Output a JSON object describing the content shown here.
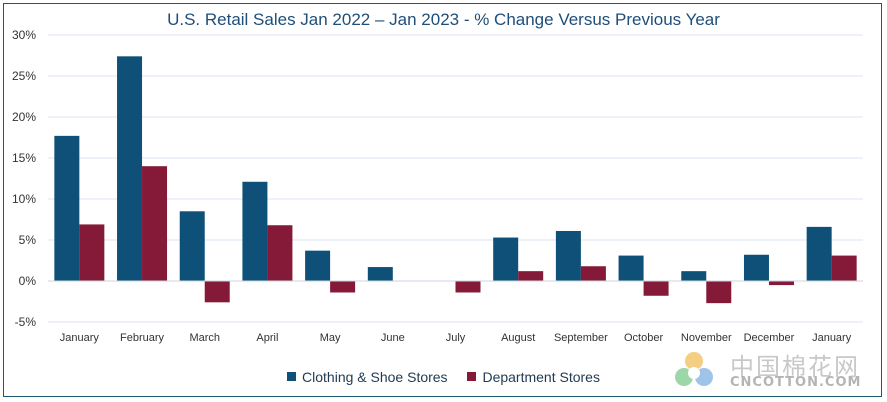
{
  "chart_data": {
    "type": "bar",
    "title": "U.S. Retail Sales Jan 2022 – Jan 2023 - % Change Versus Previous Year",
    "categories": [
      "January",
      "February",
      "March",
      "April",
      "May",
      "June",
      "July",
      "August",
      "September",
      "October",
      "November",
      "December",
      "January"
    ],
    "series": [
      {
        "name": "Clothing & Shoe Stores",
        "color": "#0e5078",
        "values": [
          17.7,
          27.4,
          8.5,
          12.1,
          3.7,
          1.7,
          0,
          5.3,
          6.1,
          3.1,
          1.2,
          3.2,
          6.6
        ]
      },
      {
        "name": "Department Stores",
        "color": "#851a38",
        "values": [
          6.9,
          14.0,
          -2.6,
          6.8,
          -1.4,
          0,
          -1.4,
          1.2,
          1.8,
          -1.8,
          -2.7,
          -0.5,
          3.1
        ]
      }
    ],
    "ylim": [
      -5,
      30
    ],
    "yticks": [
      -5,
      0,
      5,
      10,
      15,
      20,
      25,
      30
    ],
    "ytick_labels": [
      "-5%",
      "0%",
      "5%",
      "10%",
      "15%",
      "20%",
      "25%",
      "30%"
    ],
    "grid": true,
    "legend": "bottom"
  },
  "watermark": {
    "chinese": "中国棉花网",
    "english": "CNCOTTON.COM"
  }
}
